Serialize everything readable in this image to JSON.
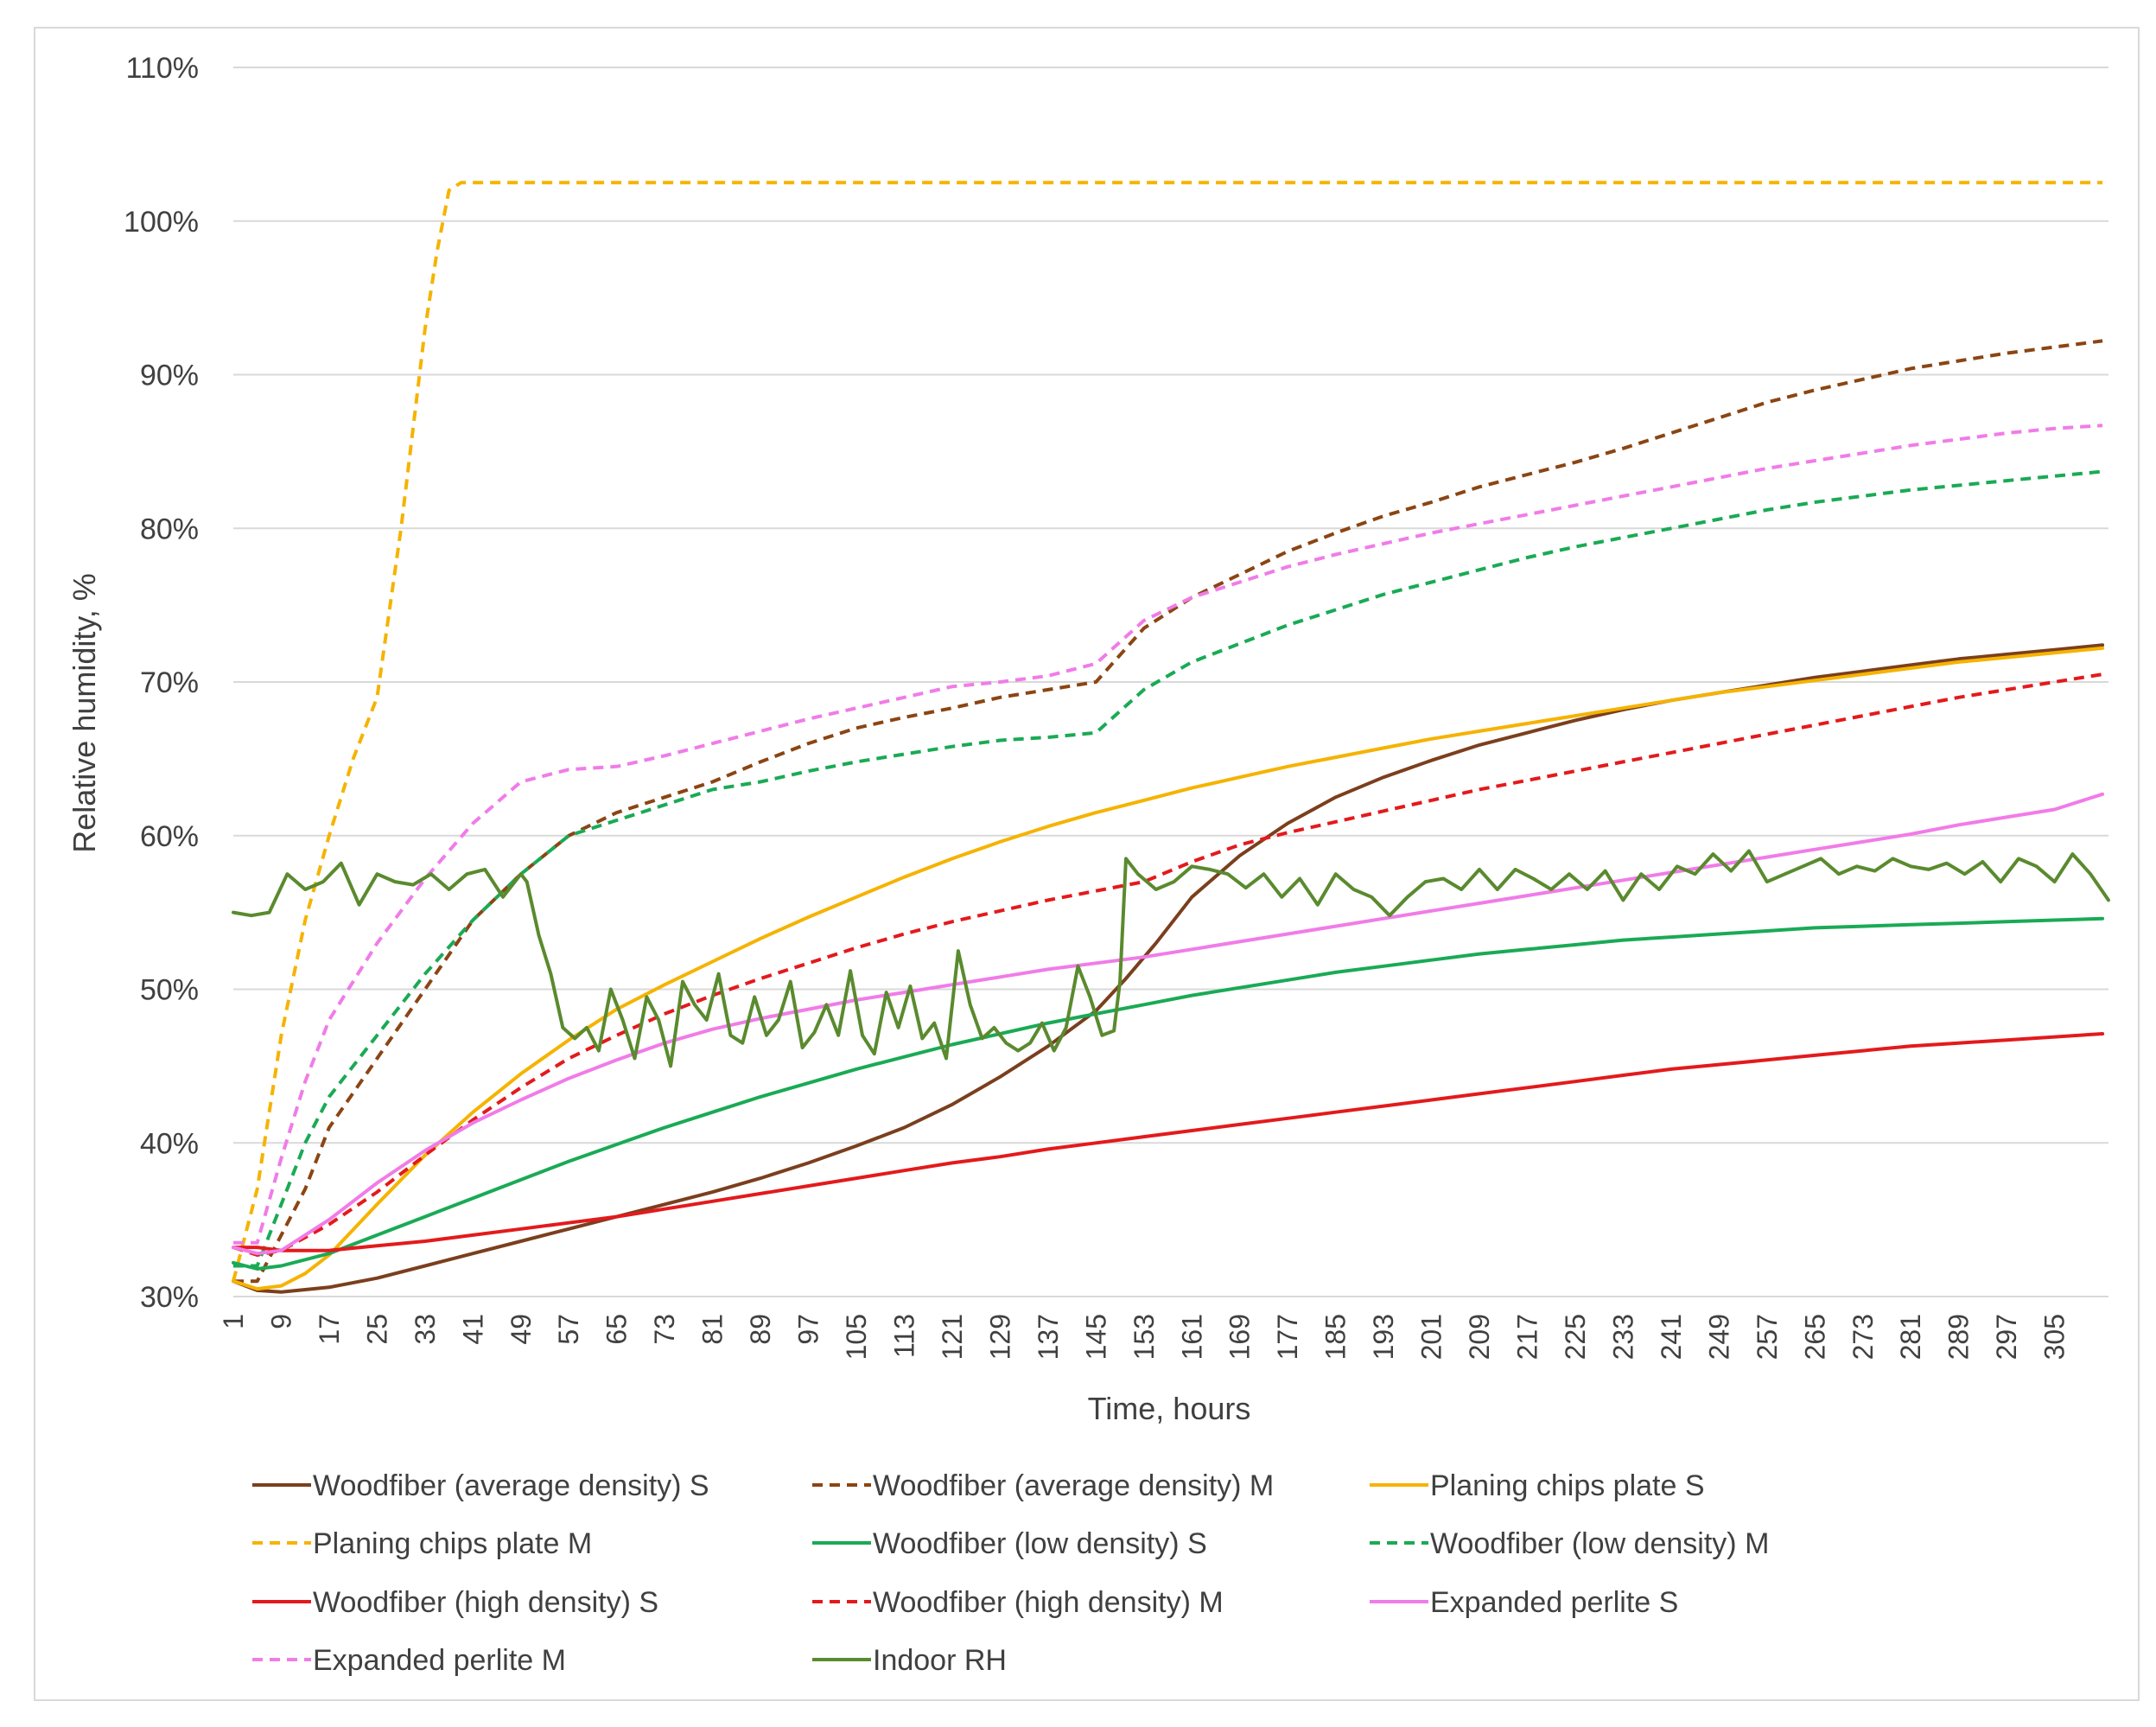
{
  "chart_data": {
    "type": "line",
    "title": "",
    "xlabel": "Time, hours",
    "ylabel": "Relative humidity, %",
    "ylim": [
      0.3,
      1.1
    ],
    "xlim": [
      1,
      314
    ],
    "y_ticks": [
      {
        "value": 0.3,
        "label": "30%"
      },
      {
        "value": 0.4,
        "label": "40%"
      },
      {
        "value": 0.5,
        "label": "50%"
      },
      {
        "value": 0.6,
        "label": "60%"
      },
      {
        "value": 0.7,
        "label": "70%"
      },
      {
        "value": 0.8,
        "label": "80%"
      },
      {
        "value": 0.9,
        "label": "90%"
      },
      {
        "value": 1.0,
        "label": "100%"
      },
      {
        "value": 1.1,
        "label": "110%"
      }
    ],
    "x_ticks": [
      "1",
      "9",
      "17",
      "25",
      "33",
      "41",
      "49",
      "57",
      "65",
      "73",
      "81",
      "89",
      "97",
      "105",
      "113",
      "121",
      "129",
      "137",
      "145",
      "153",
      "161",
      "169",
      "177",
      "185",
      "193",
      "201",
      "209",
      "217",
      "225",
      "233",
      "241",
      "249",
      "257",
      "265",
      "273",
      "281",
      "289",
      "297",
      "305"
    ],
    "grid": true,
    "legend_position": "bottom",
    "series": [
      {
        "name": "Woodfiber (average density)  S",
        "color": "#7b3f1d",
        "dash": false,
        "x": [
          1,
          5,
          9,
          17,
          25,
          33,
          41,
          49,
          57,
          65,
          73,
          81,
          89,
          97,
          105,
          113,
          121,
          129,
          137,
          145,
          150,
          155,
          161,
          169,
          177,
          185,
          193,
          201,
          209,
          217,
          225,
          233,
          241,
          249,
          257,
          265,
          273,
          281,
          289,
          297,
          305,
          313
        ],
        "values": [
          0.31,
          0.304,
          0.303,
          0.306,
          0.312,
          0.32,
          0.328,
          0.336,
          0.344,
          0.352,
          0.36,
          0.368,
          0.377,
          0.387,
          0.398,
          0.41,
          0.425,
          0.443,
          0.463,
          0.486,
          0.507,
          0.53,
          0.56,
          0.587,
          0.608,
          0.625,
          0.638,
          0.649,
          0.659,
          0.667,
          0.675,
          0.682,
          0.688,
          0.693,
          0.698,
          0.703,
          0.707,
          0.711,
          0.715,
          0.718,
          0.721,
          0.724
        ]
      },
      {
        "name": "Woodfiber (average density)  M",
        "color": "#8b4513",
        "dash": true,
        "x": [
          1,
          5,
          9,
          13,
          17,
          25,
          33,
          41,
          49,
          57,
          65,
          73,
          81,
          89,
          97,
          105,
          113,
          121,
          129,
          137,
          145,
          153,
          161,
          169,
          177,
          185,
          193,
          201,
          209,
          217,
          225,
          233,
          241,
          249,
          257,
          265,
          273,
          281,
          289,
          297,
          305,
          313
        ],
        "values": [
          0.31,
          0.31,
          0.34,
          0.37,
          0.41,
          0.455,
          0.5,
          0.545,
          0.575,
          0.6,
          0.615,
          0.625,
          0.635,
          0.648,
          0.66,
          0.67,
          0.677,
          0.683,
          0.69,
          0.695,
          0.7,
          0.735,
          0.755,
          0.77,
          0.785,
          0.797,
          0.808,
          0.817,
          0.827,
          0.835,
          0.843,
          0.852,
          0.862,
          0.872,
          0.882,
          0.89,
          0.897,
          0.904,
          0.909,
          0.914,
          0.918,
          0.922
        ]
      },
      {
        "name": "Planing chips plate  S",
        "color": "#f5b301",
        "dash": false,
        "x": [
          1,
          5,
          9,
          13,
          17,
          25,
          33,
          41,
          49,
          57,
          65,
          73,
          81,
          89,
          97,
          105,
          113,
          121,
          129,
          137,
          145,
          153,
          161,
          169,
          177,
          185,
          193,
          201,
          209,
          217,
          225,
          233,
          241,
          249,
          257,
          265,
          273,
          281,
          289,
          297,
          305,
          313
        ],
        "values": [
          0.31,
          0.305,
          0.307,
          0.315,
          0.327,
          0.36,
          0.392,
          0.42,
          0.445,
          0.467,
          0.487,
          0.503,
          0.518,
          0.533,
          0.547,
          0.56,
          0.573,
          0.585,
          0.596,
          0.606,
          0.615,
          0.623,
          0.631,
          0.638,
          0.645,
          0.651,
          0.657,
          0.663,
          0.668,
          0.673,
          0.678,
          0.683,
          0.688,
          0.693,
          0.697,
          0.701,
          0.705,
          0.709,
          0.713,
          0.716,
          0.719,
          0.722
        ]
      },
      {
        "name": "Planing chips plate   M",
        "color": "#f5b301",
        "dash": true,
        "x": [
          1,
          5,
          9,
          13,
          17,
          21,
          25,
          29,
          33,
          35,
          37,
          39,
          45,
          100,
          200,
          313
        ],
        "values": [
          0.31,
          0.37,
          0.47,
          0.545,
          0.6,
          0.65,
          0.69,
          0.8,
          0.93,
          0.98,
          1.02,
          1.025,
          1.025,
          1.025,
          1.025,
          1.025
        ]
      },
      {
        "name": "Woodfiber (low density) S",
        "color": "#1aaa55",
        "dash": false,
        "x": [
          1,
          5,
          9,
          17,
          25,
          33,
          41,
          49,
          57,
          65,
          73,
          81,
          89,
          97,
          105,
          113,
          121,
          129,
          137,
          145,
          153,
          161,
          169,
          177,
          185,
          193,
          201,
          209,
          217,
          225,
          233,
          241,
          249,
          257,
          265,
          273,
          281,
          289,
          297,
          305,
          313
        ],
        "values": [
          0.322,
          0.318,
          0.32,
          0.328,
          0.34,
          0.352,
          0.364,
          0.376,
          0.388,
          0.399,
          0.41,
          0.42,
          0.43,
          0.439,
          0.448,
          0.456,
          0.464,
          0.471,
          0.478,
          0.484,
          0.49,
          0.496,
          0.501,
          0.506,
          0.511,
          0.515,
          0.519,
          0.523,
          0.526,
          0.529,
          0.532,
          0.534,
          0.536,
          0.538,
          0.54,
          0.541,
          0.542,
          0.543,
          0.544,
          0.545,
          0.546
        ]
      },
      {
        "name": "Woodfiber (low density)  M",
        "color": "#1aaa55",
        "dash": true,
        "x": [
          1,
          5,
          9,
          13,
          17,
          25,
          33,
          41,
          49,
          57,
          65,
          73,
          81,
          89,
          97,
          105,
          113,
          121,
          129,
          137,
          145,
          153,
          161,
          169,
          177,
          185,
          193,
          201,
          209,
          217,
          225,
          233,
          241,
          249,
          257,
          265,
          273,
          281,
          289,
          297,
          305,
          313
        ],
        "values": [
          0.32,
          0.32,
          0.36,
          0.4,
          0.43,
          0.47,
          0.51,
          0.545,
          0.575,
          0.6,
          0.61,
          0.62,
          0.63,
          0.635,
          0.642,
          0.648,
          0.653,
          0.658,
          0.662,
          0.664,
          0.667,
          0.695,
          0.713,
          0.725,
          0.737,
          0.747,
          0.757,
          0.765,
          0.773,
          0.781,
          0.788,
          0.794,
          0.8,
          0.806,
          0.812,
          0.817,
          0.821,
          0.825,
          0.828,
          0.831,
          0.834,
          0.837
        ]
      },
      {
        "name": "Woodfiber (high density) S",
        "color": "#e31a1c",
        "dash": false,
        "x": [
          1,
          5,
          9,
          17,
          25,
          33,
          41,
          49,
          57,
          65,
          73,
          81,
          89,
          97,
          105,
          113,
          121,
          129,
          137,
          145,
          153,
          161,
          169,
          177,
          185,
          193,
          201,
          209,
          217,
          225,
          233,
          241,
          249,
          257,
          265,
          273,
          281,
          289,
          297,
          305,
          313
        ],
        "values": [
          0.332,
          0.332,
          0.33,
          0.33,
          0.333,
          0.336,
          0.34,
          0.344,
          0.348,
          0.352,
          0.357,
          0.362,
          0.367,
          0.372,
          0.377,
          0.382,
          0.387,
          0.391,
          0.396,
          0.4,
          0.404,
          0.408,
          0.412,
          0.416,
          0.42,
          0.424,
          0.428,
          0.432,
          0.436,
          0.44,
          0.444,
          0.448,
          0.451,
          0.454,
          0.457,
          0.46,
          0.463,
          0.465,
          0.467,
          0.469,
          0.471
        ]
      },
      {
        "name": "Woodfiber (high density) M",
        "color": "#e31a1c",
        "dash": true,
        "x": [
          1,
          5,
          9,
          17,
          25,
          33,
          41,
          49,
          57,
          65,
          73,
          81,
          89,
          97,
          105,
          113,
          121,
          129,
          137,
          145,
          153,
          161,
          169,
          177,
          185,
          193,
          201,
          209,
          217,
          225,
          233,
          241,
          249,
          257,
          265,
          273,
          281,
          289,
          297,
          305,
          313
        ],
        "values": [
          0.332,
          0.327,
          0.33,
          0.347,
          0.368,
          0.392,
          0.415,
          0.436,
          0.455,
          0.47,
          0.484,
          0.496,
          0.507,
          0.517,
          0.527,
          0.536,
          0.544,
          0.551,
          0.558,
          0.564,
          0.57,
          0.583,
          0.594,
          0.602,
          0.609,
          0.616,
          0.623,
          0.63,
          0.636,
          0.642,
          0.648,
          0.654,
          0.66,
          0.666,
          0.672,
          0.678,
          0.684,
          0.69,
          0.695,
          0.7,
          0.705
        ]
      },
      {
        "name": "Expanded perlite  S",
        "color": "#f07ce8",
        "dash": false,
        "x": [
          1,
          5,
          9,
          17,
          25,
          33,
          41,
          49,
          57,
          65,
          73,
          81,
          89,
          97,
          105,
          113,
          121,
          129,
          137,
          145,
          153,
          161,
          169,
          177,
          185,
          193,
          201,
          209,
          217,
          225,
          233,
          241,
          249,
          257,
          265,
          273,
          281,
          289,
          297,
          305,
          313
        ],
        "values": [
          0.332,
          0.328,
          0.33,
          0.35,
          0.374,
          0.395,
          0.413,
          0.428,
          0.442,
          0.454,
          0.465,
          0.474,
          0.481,
          0.487,
          0.493,
          0.498,
          0.503,
          0.508,
          0.513,
          0.517,
          0.521,
          0.526,
          0.531,
          0.536,
          0.541,
          0.546,
          0.551,
          0.556,
          0.561,
          0.566,
          0.571,
          0.576,
          0.581,
          0.586,
          0.591,
          0.596,
          0.601,
          0.607,
          0.612,
          0.617,
          0.627
        ]
      },
      {
        "name": "Expanded perlite M",
        "color": "#f07ce8",
        "dash": true,
        "x": [
          1,
          5,
          9,
          13,
          17,
          25,
          33,
          41,
          49,
          57,
          65,
          73,
          81,
          89,
          97,
          105,
          113,
          121,
          129,
          137,
          145,
          153,
          161,
          169,
          177,
          185,
          193,
          201,
          209,
          217,
          225,
          233,
          241,
          249,
          257,
          265,
          273,
          281,
          289,
          297,
          305,
          313
        ],
        "values": [
          0.335,
          0.335,
          0.39,
          0.44,
          0.48,
          0.53,
          0.572,
          0.608,
          0.635,
          0.643,
          0.645,
          0.652,
          0.66,
          0.668,
          0.676,
          0.683,
          0.69,
          0.697,
          0.7,
          0.704,
          0.712,
          0.74,
          0.755,
          0.765,
          0.775,
          0.783,
          0.79,
          0.797,
          0.803,
          0.809,
          0.815,
          0.821,
          0.827,
          0.833,
          0.839,
          0.844,
          0.849,
          0.854,
          0.858,
          0.862,
          0.865,
          0.867
        ]
      },
      {
        "name": "Indoor RH",
        "color": "#5a8a2e",
        "dash": false,
        "x": [
          1,
          4,
          7,
          10,
          13,
          16,
          19,
          22,
          25,
          28,
          31,
          34,
          37,
          40,
          43,
          46,
          49,
          50,
          52,
          54,
          56,
          58,
          60,
          62,
          64,
          66,
          68,
          70,
          72,
          74,
          76,
          78,
          80,
          82,
          84,
          86,
          88,
          90,
          92,
          94,
          96,
          98,
          100,
          102,
          104,
          106,
          108,
          110,
          112,
          114,
          116,
          118,
          120,
          122,
          124,
          126,
          128,
          130,
          132,
          134,
          136,
          138,
          140,
          142,
          144,
          146,
          148,
          149,
          150,
          152,
          155,
          158,
          161,
          164,
          167,
          170,
          173,
          176,
          179,
          182,
          185,
          188,
          191,
          194,
          197,
          200,
          203,
          206,
          209,
          212,
          215,
          218,
          221,
          224,
          227,
          230,
          233,
          236,
          239,
          242,
          245,
          248,
          251,
          254,
          257,
          260,
          263,
          266,
          269,
          272,
          275,
          278,
          281,
          284,
          287,
          290,
          293,
          296,
          299,
          302,
          305,
          308,
          311,
          314
        ],
        "values": [
          0.55,
          0.548,
          0.55,
          0.575,
          0.565,
          0.57,
          0.582,
          0.555,
          0.575,
          0.57,
          0.568,
          0.575,
          0.565,
          0.575,
          0.578,
          0.56,
          0.575,
          0.57,
          0.535,
          0.51,
          0.475,
          0.468,
          0.475,
          0.46,
          0.5,
          0.48,
          0.455,
          0.495,
          0.48,
          0.45,
          0.505,
          0.49,
          0.48,
          0.51,
          0.47,
          0.465,
          0.495,
          0.47,
          0.48,
          0.505,
          0.462,
          0.472,
          0.49,
          0.47,
          0.512,
          0.47,
          0.458,
          0.498,
          0.475,
          0.502,
          0.468,
          0.478,
          0.455,
          0.525,
          0.49,
          0.468,
          0.475,
          0.465,
          0.46,
          0.465,
          0.478,
          0.46,
          0.475,
          0.515,
          0.495,
          0.47,
          0.473,
          0.505,
          0.585,
          0.575,
          0.565,
          0.57,
          0.58,
          0.578,
          0.575,
          0.566,
          0.575,
          0.56,
          0.572,
          0.555,
          0.575,
          0.565,
          0.56,
          0.548,
          0.56,
          0.57,
          0.572,
          0.565,
          0.578,
          0.565,
          0.578,
          0.572,
          0.565,
          0.575,
          0.565,
          0.577,
          0.558,
          0.575,
          0.565,
          0.58,
          0.575,
          0.588,
          0.577,
          0.59,
          0.57,
          0.575,
          0.58,
          0.585,
          0.575,
          0.58,
          0.577,
          0.585,
          0.58,
          0.578,
          0.582,
          0.575,
          0.583,
          0.57,
          0.585,
          0.58,
          0.57,
          0.588,
          0.575,
          0.558
        ]
      }
    ]
  }
}
